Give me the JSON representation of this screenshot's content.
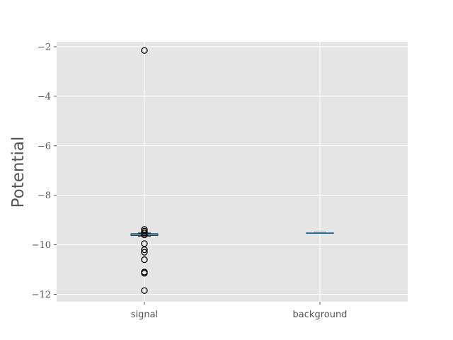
{
  "chart_data": {
    "type": "boxplot",
    "title": "",
    "xlabel": "",
    "ylabel": "Potential",
    "ylim": [
      -12.3,
      -1.8
    ],
    "yticks": [
      -2,
      -4,
      -6,
      -8,
      -10,
      -12
    ],
    "ytick_labels": [
      "−2",
      "−4",
      "−6",
      "−8",
      "−10",
      "−12"
    ],
    "categories": [
      "signal",
      "background"
    ],
    "grid": true,
    "boxes": [
      {
        "category": "signal",
        "whisker_low": -9.65,
        "q1": -9.62,
        "median": -9.58,
        "q3": -9.55,
        "whisker_high": -9.52,
        "outliers": [
          -2.15,
          -9.38,
          -9.45,
          -9.52,
          -9.6,
          -9.95,
          -10.2,
          -10.3,
          -10.6,
          -11.1,
          -11.15,
          -11.85
        ]
      },
      {
        "category": "background",
        "whisker_low": -9.54,
        "q1": -9.53,
        "median": -9.52,
        "q3": -9.51,
        "whisker_high": -9.5,
        "outliers": []
      }
    ],
    "colors": {
      "background": "#e5e5e5",
      "grid": "#ffffff",
      "box": "#1f1f1f",
      "median": "#348abd",
      "text": "#555555"
    }
  }
}
